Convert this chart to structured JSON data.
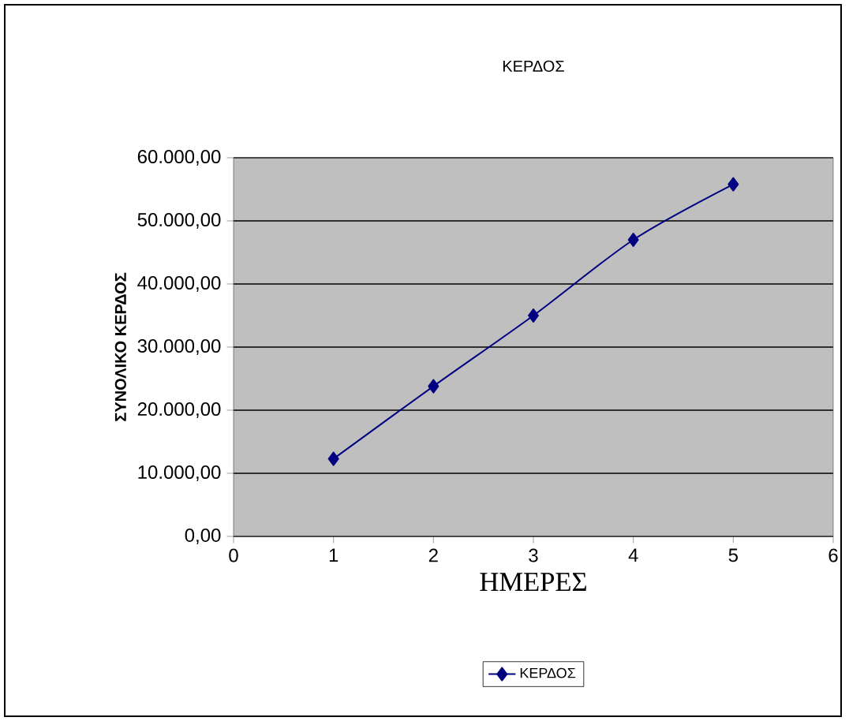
{
  "chart_data": {
    "type": "line",
    "title": "ΚΕΡΔΟΣ",
    "xlabel": "ΗΜΕΡΕΣ",
    "ylabel": "ΣΥΝΟΛΙΚΟ ΚΕΡΔΟΣ",
    "x": [
      1,
      2,
      3,
      4,
      5
    ],
    "series": [
      {
        "name": "ΚΕΡΔΟΣ",
        "color": "#000080",
        "values": [
          12300,
          23800,
          35000,
          47000,
          55800
        ]
      }
    ],
    "xlim": [
      0,
      6
    ],
    "xticks": [
      0,
      1,
      2,
      3,
      4,
      5,
      6
    ],
    "ylim": [
      0,
      60000
    ],
    "yticks": [
      {
        "value": 0,
        "label": "0,00"
      },
      {
        "value": 10000,
        "label": "10.000,00"
      },
      {
        "value": 20000,
        "label": "20.000,00"
      },
      {
        "value": 30000,
        "label": "30.000,00"
      },
      {
        "value": 40000,
        "label": "40.000,00"
      },
      {
        "value": 50000,
        "label": "50.000,00"
      },
      {
        "value": 60000,
        "label": "60.000,00"
      }
    ],
    "grid": "y",
    "legend": "bottom",
    "marker": "diamond",
    "line_style": "solid"
  }
}
